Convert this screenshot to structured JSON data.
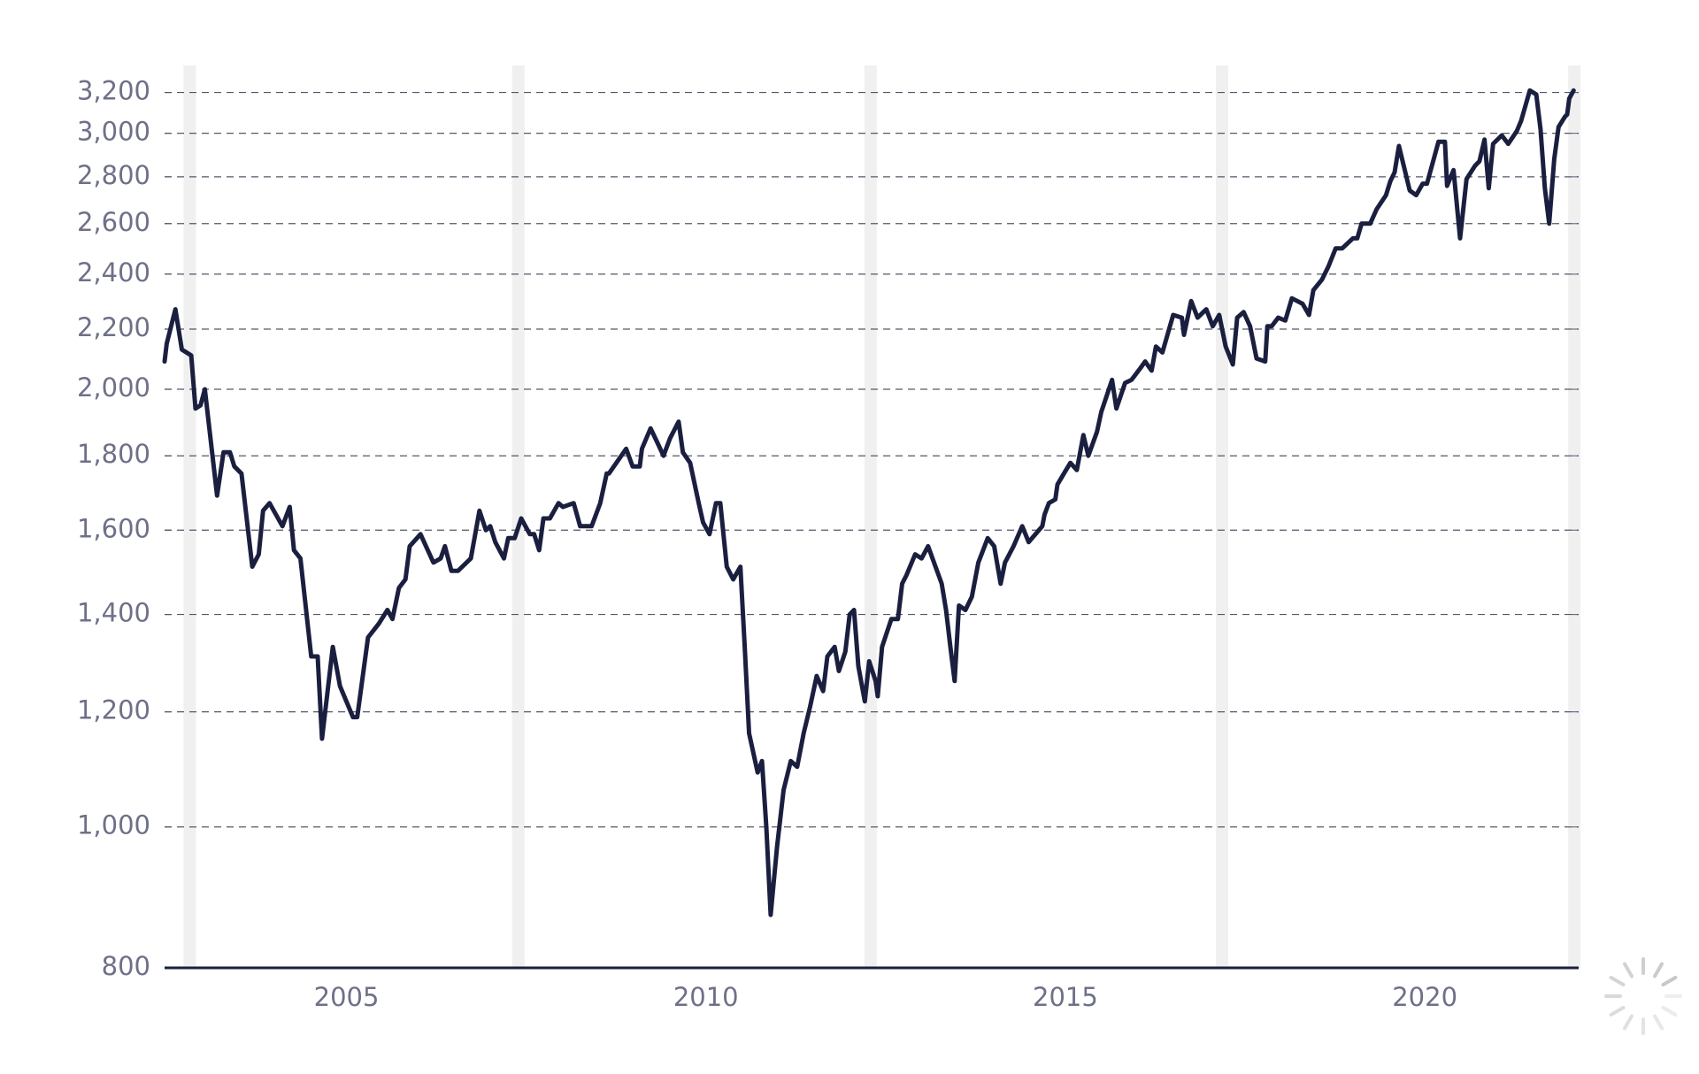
{
  "chart_data": {
    "type": "line",
    "log_y": true,
    "grid": true,
    "color": "#1b1f3f",
    "shaded_x": [
      2002.82,
      2007.39,
      2012.29,
      2017.18,
      2022.08
    ],
    "xlim": [
      2002.47,
      2022.14
    ],
    "xticks": [
      2005,
      2010,
      2015,
      2020
    ],
    "ylim": [
      800,
      3340
    ],
    "yticks": [
      800,
      {
        "value": 1000,
        "label": "1,000"
      },
      {
        "value": 1200,
        "label": "1,200"
      },
      {
        "value": 1400,
        "label": "1,400"
      },
      {
        "value": 1600,
        "label": "1,600"
      },
      {
        "value": 1800,
        "label": "1,800"
      },
      {
        "value": 2000,
        "label": "2,000"
      },
      {
        "value": 2200,
        "label": "2,200"
      },
      {
        "value": 2400,
        "label": "2,400"
      },
      {
        "value": 2600,
        "label": "2,600"
      },
      {
        "value": 2800,
        "label": "2,800"
      },
      {
        "value": 3000,
        "label": "3,000"
      },
      {
        "value": 3200,
        "label": "3,200"
      }
    ],
    "x": [
      2002.47,
      2002.5,
      2002.62,
      2002.71,
      2002.84,
      2002.9,
      2002.97,
      2003.03,
      2003.2,
      2003.29,
      2003.38,
      2003.44,
      2003.54,
      2003.69,
      2003.78,
      2003.84,
      2003.93,
      2004.11,
      2004.21,
      2004.27,
      2004.36,
      2004.51,
      2004.6,
      2004.66,
      2004.81,
      2004.91,
      2005.09,
      2005.15,
      2005.3,
      2005.45,
      2005.57,
      2005.64,
      2005.73,
      2005.82,
      2005.88,
      2006.03,
      2006.21,
      2006.31,
      2006.37,
      2006.46,
      2006.55,
      2006.73,
      2006.85,
      2006.94,
      2007.0,
      2007.07,
      2007.19,
      2007.25,
      2007.34,
      2007.43,
      2007.55,
      2007.61,
      2007.68,
      2007.74,
      2007.83,
      2007.95,
      2008.01,
      2008.16,
      2008.25,
      2008.41,
      2008.53,
      2008.62,
      2008.65,
      2008.89,
      2008.98,
      2009.08,
      2009.11,
      2009.23,
      2009.32,
      2009.41,
      2009.5,
      2009.62,
      2009.68,
      2009.78,
      2009.9,
      2009.96,
      2010.05,
      2010.14,
      2010.2,
      2010.29,
      2010.38,
      2010.48,
      2010.54,
      2010.6,
      2010.72,
      2010.78,
      2010.84,
      2010.9,
      2010.99,
      2011.08,
      2011.18,
      2011.27,
      2011.36,
      2011.45,
      2011.54,
      2011.63,
      2011.69,
      2011.79,
      2011.85,
      2011.94,
      2012.0,
      2012.06,
      2012.12,
      2012.21,
      2012.27,
      2012.36,
      2012.39,
      2012.45,
      2012.58,
      2012.67,
      2012.73,
      2012.79,
      2012.91,
      2013.0,
      2013.09,
      2013.28,
      2013.34,
      2013.4,
      2013.46,
      2013.52,
      2013.61,
      2013.7,
      2013.79,
      2013.92,
      2014.01,
      2014.1,
      2014.16,
      2014.28,
      2014.4,
      2014.49,
      2014.68,
      2014.71,
      2014.77,
      2014.86,
      2014.89,
      2014.98,
      2015.07,
      2015.16,
      2015.25,
      2015.32,
      2015.44,
      2015.5,
      2015.65,
      2015.71,
      2015.83,
      2015.92,
      2016.05,
      2016.11,
      2016.2,
      2016.26,
      2016.35,
      2016.5,
      2016.62,
      2016.65,
      2016.75,
      2016.84,
      2016.96,
      2017.05,
      2017.14,
      2017.23,
      2017.33,
      2017.39,
      2017.48,
      2017.57,
      2017.66,
      2017.78,
      2017.81,
      2017.87,
      2017.96,
      2018.06,
      2018.15,
      2018.3,
      2018.39,
      2018.45,
      2018.57,
      2018.66,
      2018.76,
      2018.85,
      2019.0,
      2019.06,
      2019.12,
      2019.24,
      2019.33,
      2019.46,
      2019.52,
      2019.58,
      2019.64,
      2019.79,
      2019.88,
      2019.97,
      2020.03,
      2020.19,
      2020.28,
      2020.31,
      2020.4,
      2020.49,
      2020.58,
      2020.7,
      2020.76,
      2020.83,
      2020.89,
      2020.95,
      2021.07,
      2021.16,
      2021.28,
      2021.34,
      2021.46,
      2021.55,
      2021.61,
      2021.67,
      2021.73,
      2021.8,
      2021.86,
      2021.95,
      2021.98,
      2022.01,
      2022.07
    ],
    "values": [
      2090,
      2150,
      2270,
      2130,
      2110,
      1940,
      1950,
      2000,
      1690,
      1810,
      1810,
      1770,
      1750,
      1510,
      1540,
      1650,
      1670,
      1610,
      1660,
      1550,
      1530,
      1310,
      1310,
      1150,
      1330,
      1250,
      1190,
      1190,
      1350,
      1380,
      1410,
      1390,
      1460,
      1480,
      1560,
      1590,
      1520,
      1530,
      1560,
      1500,
      1500,
      1530,
      1650,
      1600,
      1610,
      1570,
      1530,
      1580,
      1580,
      1630,
      1590,
      1590,
      1550,
      1630,
      1630,
      1670,
      1660,
      1670,
      1610,
      1610,
      1670,
      1750,
      1750,
      1820,
      1770,
      1770,
      1820,
      1880,
      1840,
      1800,
      1850,
      1900,
      1810,
      1780,
      1670,
      1620,
      1590,
      1670,
      1670,
      1510,
      1480,
      1510,
      1330,
      1160,
      1090,
      1110,
      1000,
      870,
      970,
      1060,
      1110,
      1100,
      1160,
      1210,
      1270,
      1240,
      1310,
      1330,
      1280,
      1320,
      1400,
      1410,
      1290,
      1220,
      1300,
      1260,
      1230,
      1330,
      1390,
      1390,
      1470,
      1490,
      1540,
      1530,
      1560,
      1470,
      1410,
      1330,
      1260,
      1420,
      1410,
      1440,
      1520,
      1580,
      1560,
      1470,
      1520,
      1560,
      1610,
      1570,
      1610,
      1640,
      1670,
      1680,
      1720,
      1750,
      1780,
      1760,
      1860,
      1800,
      1870,
      1930,
      2030,
      1940,
      2020,
      2030,
      2070,
      2090,
      2060,
      2140,
      2120,
      2250,
      2240,
      2180,
      2300,
      2240,
      2270,
      2210,
      2250,
      2140,
      2080,
      2240,
      2260,
      2210,
      2100,
      2090,
      2210,
      2210,
      2240,
      2230,
      2310,
      2290,
      2250,
      2340,
      2380,
      2430,
      2500,
      2500,
      2540,
      2540,
      2600,
      2600,
      2660,
      2720,
      2780,
      2820,
      2940,
      2740,
      2720,
      2770,
      2770,
      2960,
      2960,
      2760,
      2830,
      2540,
      2790,
      2850,
      2870,
      2970,
      2750,
      2950,
      2990,
      2950,
      3010,
      3060,
      3210,
      3190,
      3020,
      2750,
      2600,
      2880,
      3030,
      3080,
      3090,
      3170,
      3210
    ]
  }
}
